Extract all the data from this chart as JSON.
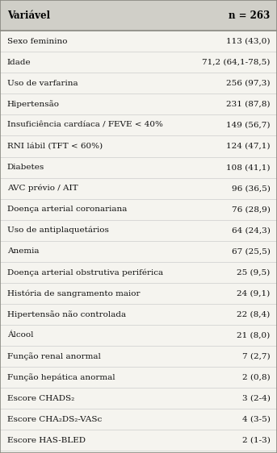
{
  "header_left": "Variável",
  "header_right": "n = 263",
  "header_bg": "#d0cfc8",
  "header_text_color": "#000000",
  "bg_color": "#f5f4ef",
  "rows": [
    [
      "Sexo feminino",
      "113 (43,0)"
    ],
    [
      "Idade",
      "71,2 (64,1-78,5)"
    ],
    [
      "Uso de varfarina",
      "256 (97,3)"
    ],
    [
      "Hipertensão",
      "231 (87,8)"
    ],
    [
      "Insuficiência cardíaca / FEVE < 40%",
      "149 (56,7)"
    ],
    [
      "RNI lábil (TFT < 60%)",
      "124 (47,1)"
    ],
    [
      "Diabetes",
      "108 (41,1)"
    ],
    [
      "AVC prévio / AIT",
      "96 (36,5)"
    ],
    [
      "Doença arterial coronariana",
      "76 (28,9)"
    ],
    [
      "Uso de antiplaquetários",
      "64 (24,3)"
    ],
    [
      "Anemia",
      "67 (25,5)"
    ],
    [
      "Doença arterial obstrutiva periférica",
      "25 (9,5)"
    ],
    [
      "História de sangramento maior",
      "24 (9,1)"
    ],
    [
      "Hipertensão não controlada",
      "22 (8,4)"
    ],
    [
      "Álcool",
      "21 (8,0)"
    ],
    [
      "Função renal anormal",
      "7 (2,7)"
    ],
    [
      "Função hepática anormal",
      "2 (0,8)"
    ],
    [
      "Escore CHADS₂",
      "3 (2-4)"
    ],
    [
      "Escore CHA₂DS₂-VASc",
      "4 (3-5)"
    ],
    [
      "Escore HAS-BLED",
      "2 (1-3)"
    ]
  ],
  "font_size": 7.5,
  "header_font_size": 8.5,
  "figsize": [
    3.43,
    5.62
  ],
  "dpi": 100,
  "border_color": "#888880",
  "line_color": "#cccccc",
  "text_color": "#111111"
}
